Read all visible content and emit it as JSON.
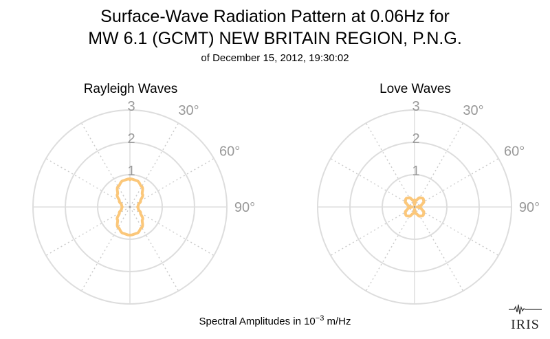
{
  "title_line1": "Surface-Wave Radiation Pattern at 0.06Hz for",
  "title_line2": "MW 6.1 (GCMT) NEW BRITAIN REGION, P.N.G.",
  "subtitle": "of December 15, 2012, 19:30:02",
  "footer": {
    "prefix": "Spectral Amplitudes in ",
    "base": "10",
    "exponent": "−3",
    "unit": " m/Hz"
  },
  "logo_text": "IRIS",
  "colors": {
    "pattern": "#fbc77a",
    "grid_solid": "#dddddd",
    "grid_dotted": "#cccccc",
    "tick_label": "#999999"
  },
  "chart_data": [
    {
      "type": "polar-line",
      "title": "Rayleigh Waves",
      "r_ticks": [
        "1",
        "2",
        "3"
      ],
      "r_max": 3,
      "angle_ticks": [
        "30°",
        "60°",
        "90°"
      ],
      "grid": true,
      "series": [
        {
          "angle_deg": [
            0,
            15,
            30,
            45,
            60,
            75,
            90,
            105,
            120,
            135,
            150,
            165,
            180,
            195,
            210,
            225,
            240,
            255,
            270,
            285,
            300,
            315,
            330,
            345
          ],
          "r": [
            0.87,
            0.84,
            0.73,
            0.55,
            0.38,
            0.27,
            0.24,
            0.27,
            0.38,
            0.55,
            0.73,
            0.84,
            0.87,
            0.84,
            0.73,
            0.55,
            0.38,
            0.27,
            0.24,
            0.27,
            0.38,
            0.55,
            0.73,
            0.84
          ]
        }
      ]
    },
    {
      "type": "polar-line",
      "title": "Love Waves",
      "r_ticks": [
        "1",
        "2",
        "3"
      ],
      "r_max": 3,
      "angle_ticks": [
        "30°",
        "60°",
        "90°"
      ],
      "grid": true,
      "series": [
        {
          "angle_deg": [
            0,
            15,
            30,
            45,
            60,
            75,
            90,
            105,
            120,
            135,
            150,
            165,
            180,
            195,
            210,
            225,
            240,
            255,
            270,
            285,
            300,
            315,
            330,
            345
          ],
          "r": [
            0.07,
            0.22,
            0.33,
            0.37,
            0.33,
            0.22,
            0.07,
            0.22,
            0.33,
            0.37,
            0.33,
            0.22,
            0.07,
            0.22,
            0.33,
            0.37,
            0.33,
            0.22,
            0.07,
            0.22,
            0.33,
            0.37,
            0.33,
            0.22
          ]
        }
      ]
    }
  ]
}
